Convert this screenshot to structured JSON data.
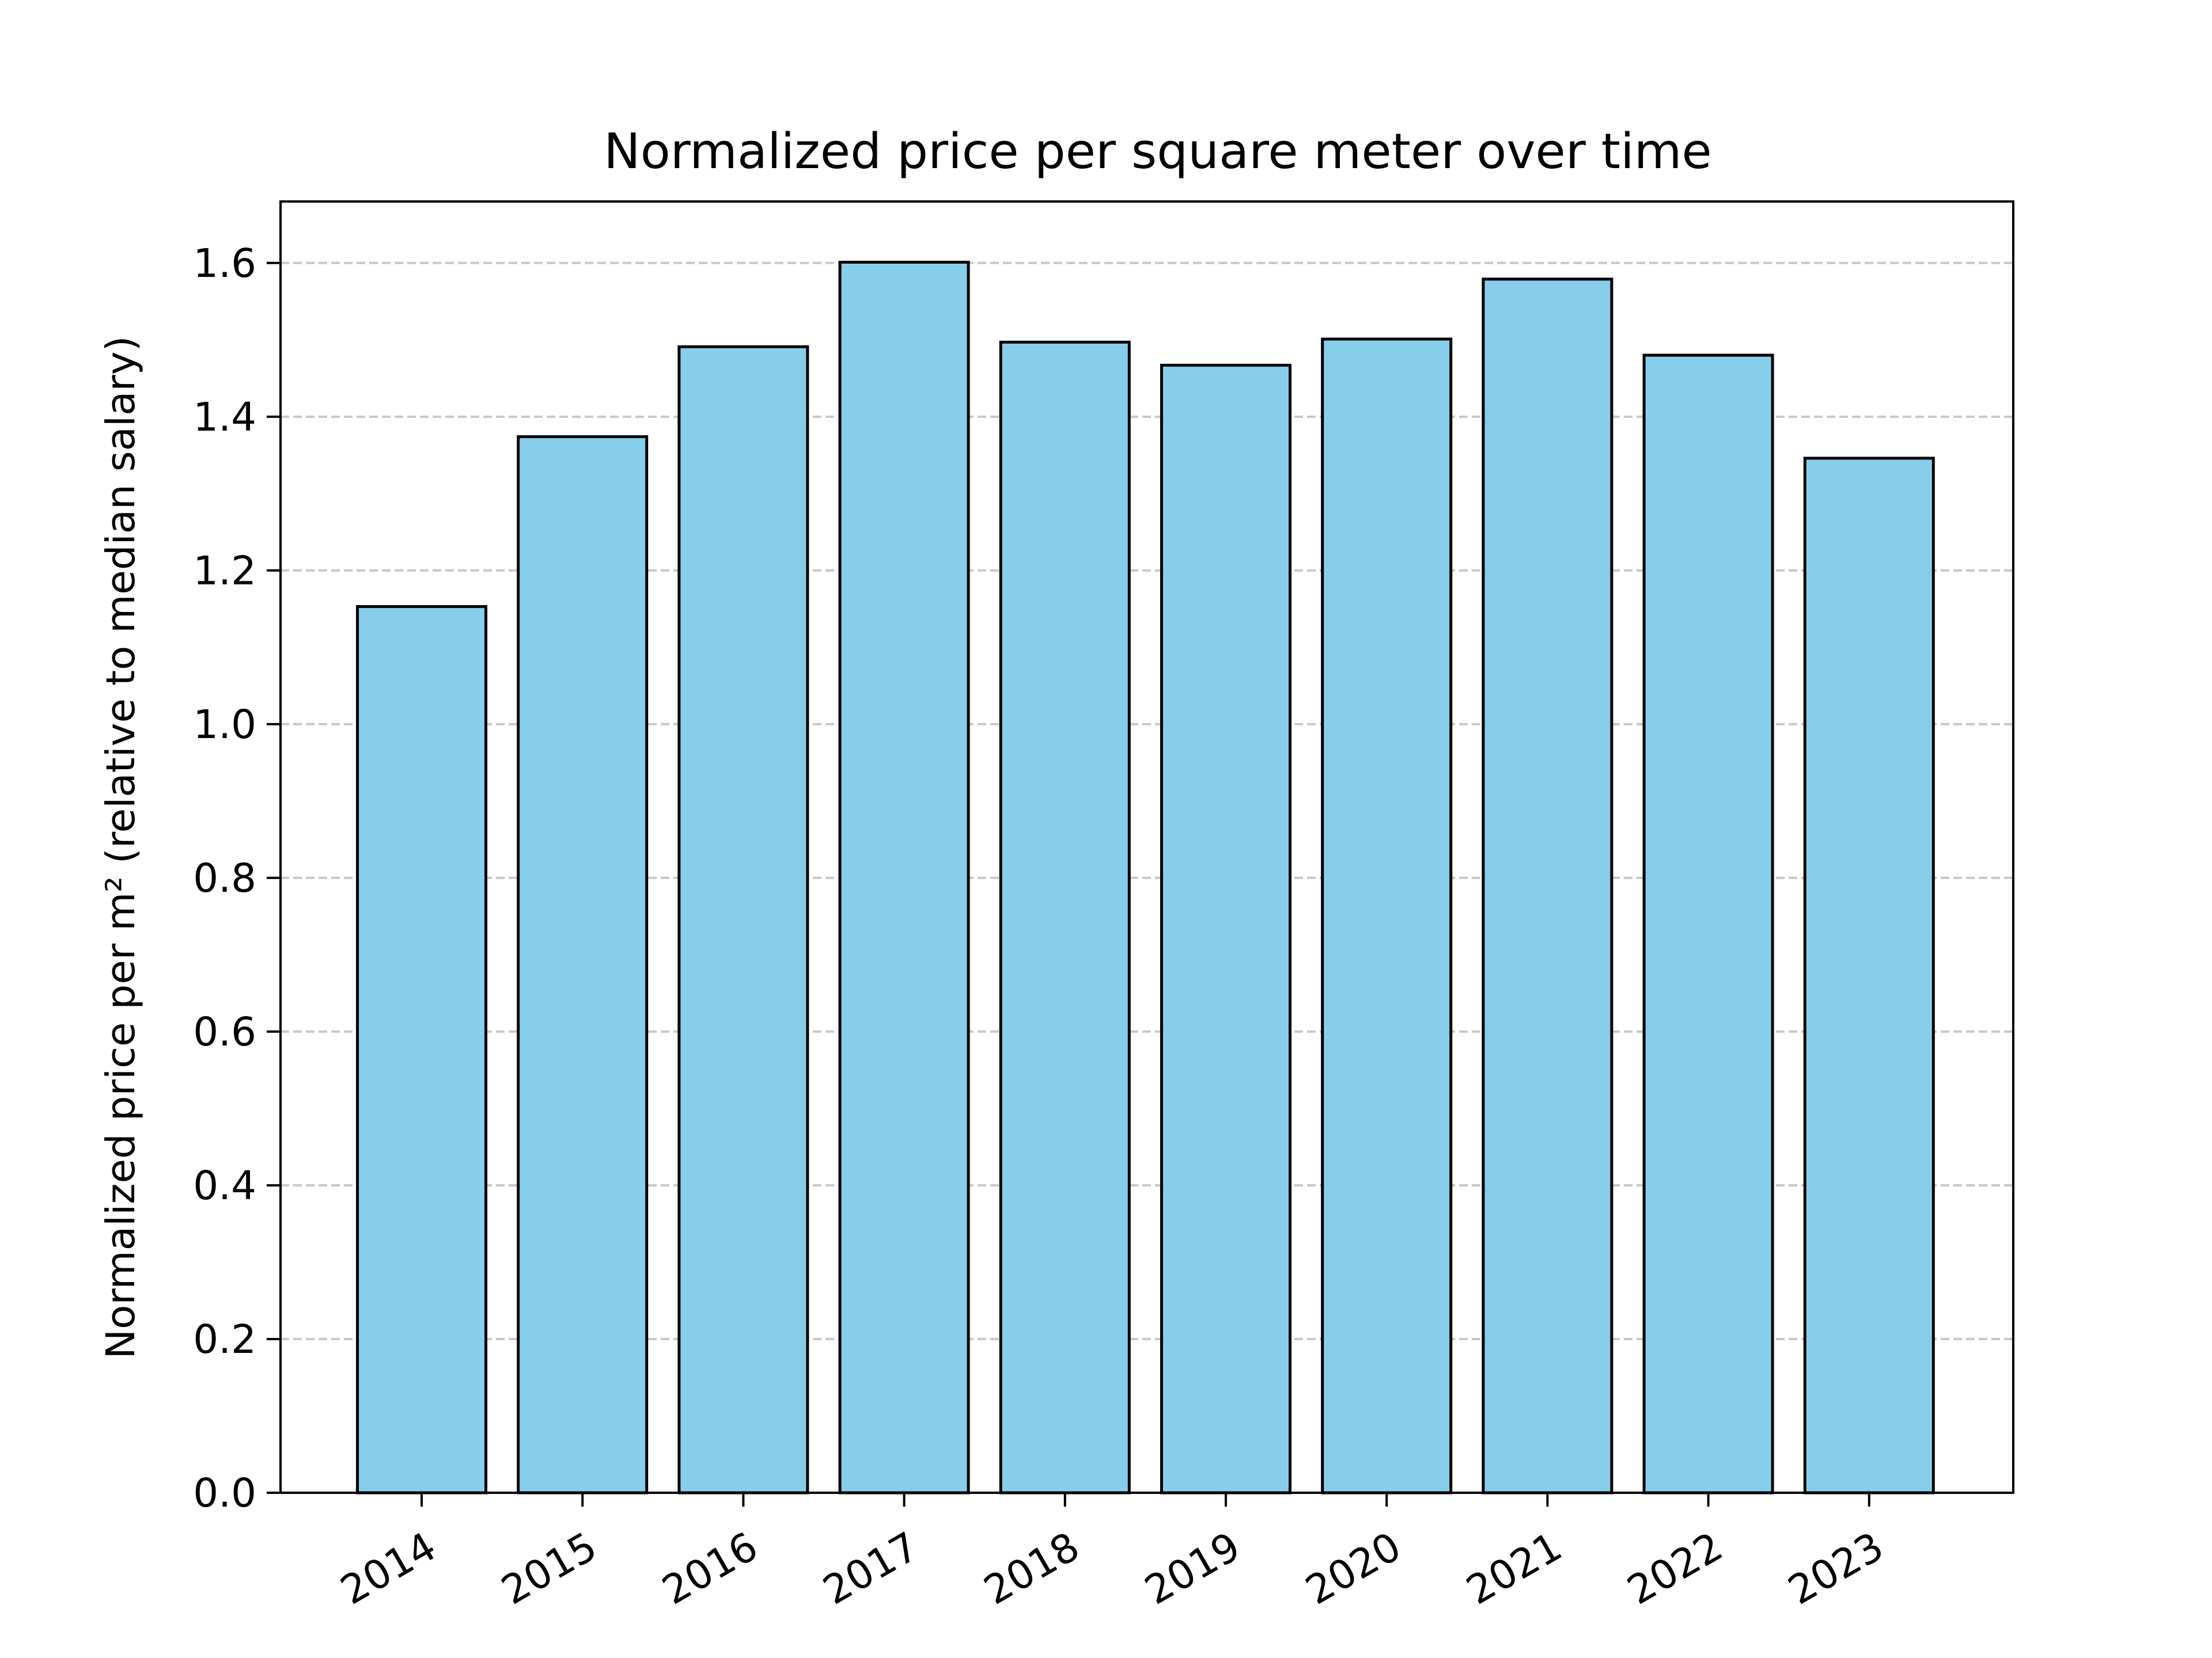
{
  "chart_data": {
    "type": "bar",
    "title": "Normalized price per square meter over time",
    "xlabel": "",
    "ylabel": "Normalized price per m² (relative to median salary)",
    "categories": [
      "2014",
      "2015",
      "2016",
      "2017",
      "2018",
      "2019",
      "2020",
      "2021",
      "2022",
      "2023"
    ],
    "values": [
      1.153,
      1.374,
      1.491,
      1.601,
      1.497,
      1.467,
      1.501,
      1.579,
      1.48,
      1.346
    ],
    "ylim": [
      0,
      1.68
    ],
    "yticks": [
      "0.0",
      "0.2",
      "0.4",
      "0.6",
      "0.8",
      "1.0",
      "1.2",
      "1.4",
      "1.6"
    ],
    "grid": "y, dashed",
    "legend": "none",
    "bar_color": "#87CEEB",
    "edge_color": "#000000",
    "grid_color": "#c8c8c8"
  }
}
